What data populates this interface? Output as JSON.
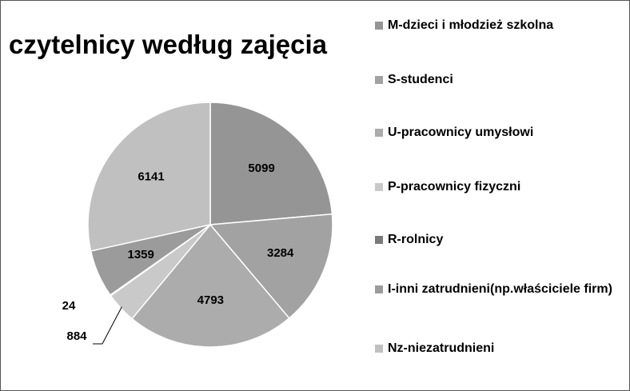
{
  "chart_data": {
    "type": "pie",
    "title": "czytelnicy według zajęcia",
    "categories": [
      "M-dzieci i młodzież szkolna",
      "S-studenci",
      "U-pracownicy umysłowi",
      "P-pracownicy fizyczni",
      "R-rolnicy",
      "I-inni zatrudnieni(np.właściciele firm)",
      "Nz-niezatrudnieni"
    ],
    "values": [
      5099,
      3284,
      4793,
      884,
      24,
      1359,
      6141
    ],
    "colors": [
      "#959595",
      "#a2a2a2",
      "#acacac",
      "#c9c9c9",
      "#7a7a7a",
      "#9b9b9b",
      "#c0c0c0"
    ],
    "legend": "right"
  }
}
